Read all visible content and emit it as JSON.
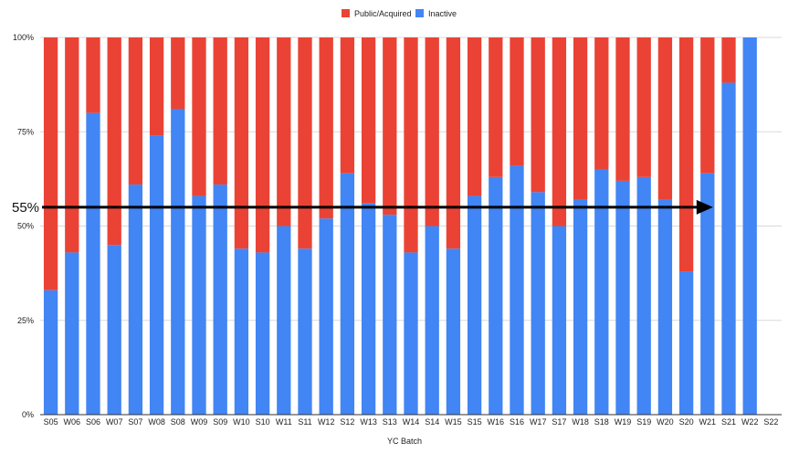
{
  "chart_data": {
    "type": "bar",
    "stacked": true,
    "normalized": true,
    "xlabel": "YC Batch",
    "ylabel": "",
    "ylim": [
      0,
      100
    ],
    "yticks": [
      "0%",
      "25%",
      "50%",
      "75%",
      "100%"
    ],
    "grid": true,
    "legend_position": "top",
    "categories": [
      "S05",
      "W06",
      "S06",
      "W07",
      "S07",
      "W08",
      "S08",
      "W09",
      "S09",
      "W10",
      "S10",
      "W11",
      "S11",
      "W12",
      "S12",
      "W13",
      "S13",
      "W14",
      "S14",
      "W15",
      "S15",
      "W16",
      "S16",
      "W17",
      "S17",
      "W18",
      "S18",
      "W19",
      "S19",
      "W20",
      "S20",
      "W21",
      "S21",
      "W22",
      "S22"
    ],
    "series": [
      {
        "name": "Public/Acquired",
        "color": "#EA4335",
        "values": [
          67,
          57,
          20,
          55,
          39,
          26,
          19,
          42,
          39,
          56,
          57,
          50,
          56,
          48,
          36,
          44,
          47,
          57,
          50,
          56,
          42,
          37,
          34,
          41,
          50,
          43,
          35,
          38,
          37,
          43,
          62,
          36,
          12,
          0,
          0
        ]
      },
      {
        "name": "Inactive",
        "color": "#4285F4",
        "values": [
          33,
          43,
          80,
          45,
          61,
          74,
          81,
          58,
          61,
          44,
          43,
          50,
          44,
          52,
          64,
          56,
          53,
          43,
          50,
          44,
          58,
          63,
          66,
          59,
          50,
          57,
          65,
          62,
          63,
          57,
          38,
          64,
          88,
          100,
          0
        ]
      }
    ],
    "annotation": {
      "label": "55%",
      "value": 55,
      "arrow_from": "S05",
      "arrow_to": "W21"
    }
  }
}
